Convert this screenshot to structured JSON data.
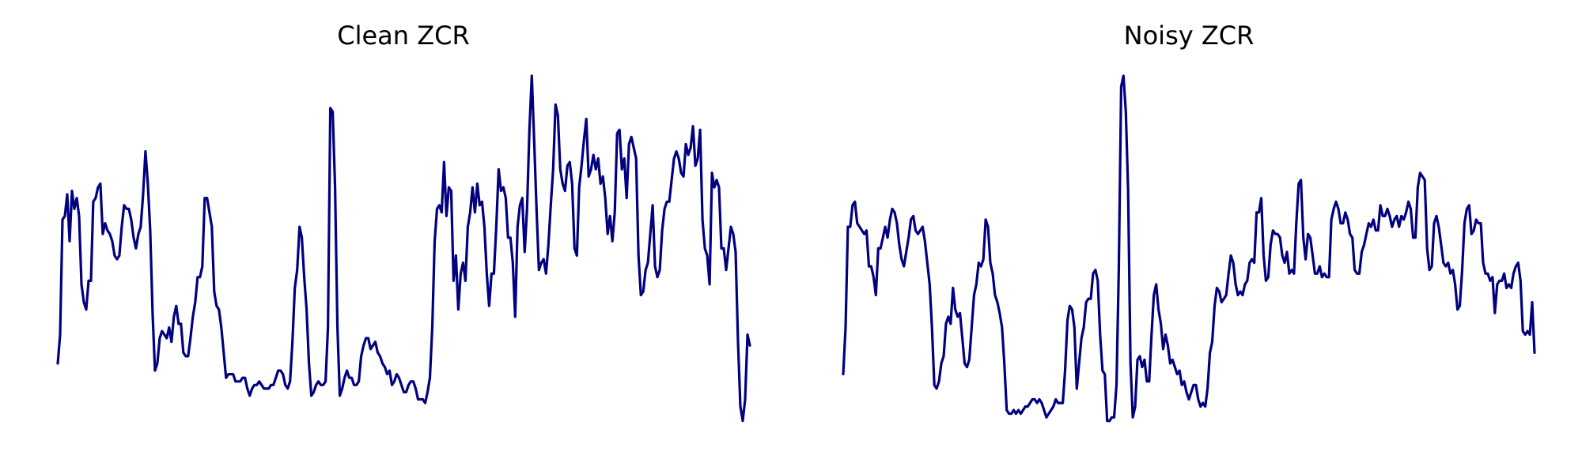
{
  "chart_data": [
    {
      "type": "line",
      "title": "Clean ZCR",
      "axes_visible": false,
      "grid": false,
      "color": "#000080",
      "ylim": [
        0,
        1
      ],
      "y": [
        0.2,
        0.28,
        0.6,
        0.61,
        0.67,
        0.54,
        0.68,
        0.63,
        0.66,
        0.61,
        0.42,
        0.37,
        0.35,
        0.43,
        0.43,
        0.65,
        0.66,
        0.69,
        0.7,
        0.56,
        0.59,
        0.57,
        0.56,
        0.54,
        0.5,
        0.49,
        0.5,
        0.58,
        0.64,
        0.63,
        0.63,
        0.6,
        0.55,
        0.52,
        0.56,
        0.58,
        0.67,
        0.79,
        0.7,
        0.57,
        0.34,
        0.18,
        0.2,
        0.27,
        0.29,
        0.28,
        0.27,
        0.3,
        0.26,
        0.33,
        0.36,
        0.31,
        0.31,
        0.23,
        0.22,
        0.22,
        0.27,
        0.33,
        0.37,
        0.44,
        0.44,
        0.47,
        0.66,
        0.66,
        0.62,
        0.58,
        0.4,
        0.36,
        0.35,
        0.3,
        0.23,
        0.16,
        0.17,
        0.17,
        0.17,
        0.15,
        0.15,
        0.15,
        0.16,
        0.16,
        0.13,
        0.11,
        0.13,
        0.14,
        0.14,
        0.15,
        0.14,
        0.13,
        0.13,
        0.13,
        0.14,
        0.14,
        0.16,
        0.18,
        0.18,
        0.17,
        0.14,
        0.13,
        0.15,
        0.26,
        0.41,
        0.46,
        0.58,
        0.55,
        0.44,
        0.35,
        0.2,
        0.11,
        0.12,
        0.14,
        0.15,
        0.14,
        0.14,
        0.15,
        0.3,
        0.91,
        0.9,
        0.69,
        0.3,
        0.11,
        0.13,
        0.16,
        0.18,
        0.16,
        0.16,
        0.14,
        0.14,
        0.15,
        0.22,
        0.25,
        0.27,
        0.27,
        0.24,
        0.25,
        0.26,
        0.23,
        0.22,
        0.2,
        0.19,
        0.17,
        0.18,
        0.14,
        0.15,
        0.17,
        0.16,
        0.14,
        0.12,
        0.12,
        0.14,
        0.15,
        0.15,
        0.13,
        0.1,
        0.1,
        0.1,
        0.09,
        0.12,
        0.16,
        0.3,
        0.54,
        0.63,
        0.64,
        0.62,
        0.76,
        0.61,
        0.69,
        0.68,
        0.43,
        0.5,
        0.35,
        0.45,
        0.48,
        0.43,
        0.58,
        0.62,
        0.69,
        0.62,
        0.7,
        0.64,
        0.65,
        0.58,
        0.45,
        0.36,
        0.45,
        0.45,
        0.58,
        0.74,
        0.68,
        0.69,
        0.66,
        0.55,
        0.55,
        0.48,
        0.33,
        0.58,
        0.64,
        0.66,
        0.51,
        0.63,
        0.85,
        1.0,
        0.82,
        0.63,
        0.46,
        0.48,
        0.49,
        0.45,
        0.53,
        0.64,
        0.74,
        0.92,
        0.89,
        0.74,
        0.7,
        0.68,
        0.75,
        0.76,
        0.7,
        0.52,
        0.5,
        0.69,
        0.75,
        0.82,
        0.88,
        0.72,
        0.74,
        0.78,
        0.74,
        0.77,
        0.7,
        0.72,
        0.66,
        0.56,
        0.61,
        0.54,
        0.62,
        0.84,
        0.85,
        0.74,
        0.77,
        0.66,
        0.81,
        0.83,
        0.8,
        0.77,
        0.5,
        0.39,
        0.4,
        0.46,
        0.48,
        0.56,
        0.64,
        0.47,
        0.44,
        0.46,
        0.57,
        0.63,
        0.65,
        0.65,
        0.71,
        0.77,
        0.79,
        0.77,
        0.73,
        0.72,
        0.81,
        0.78,
        0.8,
        0.86,
        0.75,
        0.77,
        0.85,
        0.6,
        0.52,
        0.5,
        0.42,
        0.73,
        0.69,
        0.71,
        0.69,
        0.52,
        0.52,
        0.46,
        0.52,
        0.58,
        0.56,
        0.51,
        0.26,
        0.08,
        0.04,
        0.1,
        0.28,
        0.25
      ]
    },
    {
      "type": "line",
      "title": "Noisy ZCR",
      "axes_visible": false,
      "grid": false,
      "color": "#000080",
      "ylim": [
        0,
        1
      ],
      "y": [
        0.17,
        0.3,
        0.58,
        0.58,
        0.64,
        0.65,
        0.59,
        0.58,
        0.57,
        0.56,
        0.57,
        0.47,
        0.47,
        0.44,
        0.39,
        0.52,
        0.52,
        0.55,
        0.58,
        0.55,
        0.6,
        0.63,
        0.62,
        0.59,
        0.53,
        0.49,
        0.47,
        0.51,
        0.55,
        0.6,
        0.61,
        0.57,
        0.56,
        0.57,
        0.58,
        0.54,
        0.48,
        0.42,
        0.3,
        0.14,
        0.13,
        0.15,
        0.2,
        0.22,
        0.31,
        0.33,
        0.31,
        0.41,
        0.35,
        0.33,
        0.34,
        0.27,
        0.2,
        0.19,
        0.21,
        0.3,
        0.39,
        0.42,
        0.48,
        0.47,
        0.49,
        0.6,
        0.58,
        0.48,
        0.45,
        0.39,
        0.37,
        0.34,
        0.3,
        0.2,
        0.07,
        0.06,
        0.06,
        0.07,
        0.06,
        0.07,
        0.06,
        0.07,
        0.08,
        0.08,
        0.09,
        0.1,
        0.1,
        0.09,
        0.1,
        0.09,
        0.07,
        0.05,
        0.06,
        0.07,
        0.08,
        0.1,
        0.09,
        0.09,
        0.09,
        0.18,
        0.32,
        0.36,
        0.35,
        0.3,
        0.13,
        0.2,
        0.27,
        0.3,
        0.37,
        0.38,
        0.38,
        0.45,
        0.46,
        0.43,
        0.28,
        0.18,
        0.17,
        0.04,
        0.04,
        0.05,
        0.05,
        0.14,
        0.46,
        0.97,
        1.0,
        0.9,
        0.68,
        0.2,
        0.05,
        0.08,
        0.21,
        0.22,
        0.19,
        0.21,
        0.15,
        0.15,
        0.28,
        0.39,
        0.42,
        0.35,
        0.31,
        0.24,
        0.28,
        0.25,
        0.2,
        0.21,
        0.19,
        0.17,
        0.18,
        0.14,
        0.15,
        0.12,
        0.1,
        0.12,
        0.14,
        0.14,
        0.1,
        0.08,
        0.09,
        0.08,
        0.13,
        0.23,
        0.26,
        0.36,
        0.41,
        0.4,
        0.37,
        0.38,
        0.39,
        0.45,
        0.5,
        0.48,
        0.42,
        0.39,
        0.4,
        0.39,
        0.42,
        0.43,
        0.48,
        0.49,
        0.48,
        0.62,
        0.62,
        0.66,
        0.5,
        0.43,
        0.44,
        0.53,
        0.57,
        0.56,
        0.56,
        0.55,
        0.5,
        0.48,
        0.51,
        0.45,
        0.46,
        0.45,
        0.59,
        0.7,
        0.71,
        0.55,
        0.49,
        0.56,
        0.55,
        0.5,
        0.45,
        0.45,
        0.47,
        0.44,
        0.45,
        0.44,
        0.44,
        0.6,
        0.63,
        0.65,
        0.63,
        0.59,
        0.59,
        0.62,
        0.6,
        0.56,
        0.55,
        0.46,
        0.45,
        0.45,
        0.51,
        0.53,
        0.56,
        0.59,
        0.58,
        0.6,
        0.57,
        0.57,
        0.64,
        0.61,
        0.61,
        0.63,
        0.61,
        0.58,
        0.6,
        0.61,
        0.58,
        0.61,
        0.6,
        0.62,
        0.65,
        0.63,
        0.55,
        0.55,
        0.69,
        0.73,
        0.72,
        0.71,
        0.52,
        0.46,
        0.47,
        0.59,
        0.61,
        0.58,
        0.53,
        0.48,
        0.47,
        0.48,
        0.45,
        0.46,
        0.42,
        0.35,
        0.36,
        0.46,
        0.59,
        0.63,
        0.64,
        0.56,
        0.57,
        0.6,
        0.59,
        0.59,
        0.48,
        0.45,
        0.45,
        0.43,
        0.44,
        0.34,
        0.42,
        0.43,
        0.43,
        0.45,
        0.41,
        0.42,
        0.41,
        0.45,
        0.47,
        0.48,
        0.43,
        0.29,
        0.28,
        0.29,
        0.28,
        0.37,
        0.23
      ]
    }
  ]
}
